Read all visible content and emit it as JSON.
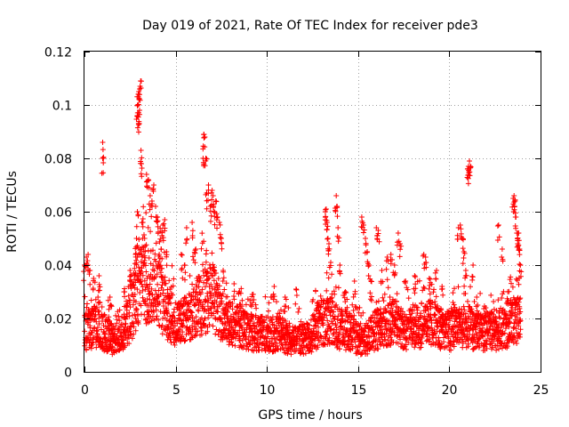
{
  "chart_data": {
    "type": "scatter",
    "title": "Day 019 of 2021, Rate Of TEC Index for receiver pde3",
    "xlabel": "GPS time / hours",
    "ylabel": "ROTI / TECUs",
    "xlim": [
      0,
      25
    ],
    "ylim": [
      0,
      0.12
    ],
    "x_ticks": [
      0,
      5,
      10,
      15,
      20,
      25
    ],
    "x_tick_labels": [
      "0",
      "5",
      "10",
      "15",
      "20",
      "25"
    ],
    "y_ticks": [
      0,
      0.02,
      0.04,
      0.06,
      0.08,
      0.1,
      0.12
    ],
    "y_tick_labels": [
      "0",
      "0.02",
      "0.04",
      "0.06",
      "0.08",
      "0.1",
      "0.12"
    ],
    "grid": true,
    "marker": "plus",
    "color": "#ff0000",
    "x_step": 0.02,
    "baseline": [
      [
        0.0,
        0.016
      ],
      [
        0.5,
        0.018
      ],
      [
        1.0,
        0.016
      ],
      [
        1.5,
        0.013
      ],
      [
        2.0,
        0.015
      ],
      [
        2.5,
        0.022
      ],
      [
        3.0,
        0.034
      ],
      [
        3.5,
        0.034
      ],
      [
        4.0,
        0.032
      ],
      [
        4.5,
        0.024
      ],
      [
        5.0,
        0.019
      ],
      [
        5.5,
        0.02
      ],
      [
        6.0,
        0.024
      ],
      [
        6.5,
        0.028
      ],
      [
        7.0,
        0.03
      ],
      [
        7.5,
        0.023
      ],
      [
        8.0,
        0.019
      ],
      [
        8.5,
        0.018
      ],
      [
        9.0,
        0.016
      ],
      [
        9.5,
        0.015
      ],
      [
        10.0,
        0.015
      ],
      [
        10.5,
        0.015
      ],
      [
        11.0,
        0.014
      ],
      [
        11.5,
        0.012
      ],
      [
        12.0,
        0.013
      ],
      [
        12.5,
        0.015
      ],
      [
        13.0,
        0.02
      ],
      [
        13.5,
        0.02
      ],
      [
        14.0,
        0.017
      ],
      [
        14.5,
        0.016
      ],
      [
        15.0,
        0.013
      ],
      [
        15.5,
        0.013
      ],
      [
        16.0,
        0.017
      ],
      [
        16.5,
        0.018
      ],
      [
        17.0,
        0.02
      ],
      [
        17.5,
        0.016
      ],
      [
        18.0,
        0.018
      ],
      [
        18.5,
        0.018
      ],
      [
        19.0,
        0.02
      ],
      [
        19.5,
        0.017
      ],
      [
        20.0,
        0.016
      ],
      [
        20.5,
        0.017
      ],
      [
        21.0,
        0.018
      ],
      [
        21.5,
        0.016
      ],
      [
        22.0,
        0.016
      ],
      [
        22.5,
        0.016
      ],
      [
        23.0,
        0.017
      ],
      [
        23.5,
        0.02
      ],
      [
        23.9,
        0.02
      ]
    ],
    "extremes": [
      {
        "x": 0.0,
        "y": 0.04
      },
      {
        "x": 0.1,
        "y": 0.043
      },
      {
        "x": 0.2,
        "y": 0.044
      },
      {
        "x": 0.3,
        "y": 0.038
      },
      {
        "x": 0.5,
        "y": 0.035
      },
      {
        "x": 0.8,
        "y": 0.036
      },
      {
        "x": 1.0,
        "y": 0.086
      },
      {
        "x": 1.0,
        "y": 0.08
      },
      {
        "x": 1.4,
        "y": 0.028
      },
      {
        "x": 2.2,
        "y": 0.03
      },
      {
        "x": 2.5,
        "y": 0.038
      },
      {
        "x": 2.8,
        "y": 0.044
      },
      {
        "x": 2.85,
        "y": 0.05
      },
      {
        "x": 2.9,
        "y": 0.06
      },
      {
        "x": 2.9,
        "y": 0.096
      },
      {
        "x": 2.92,
        "y": 0.1
      },
      {
        "x": 2.95,
        "y": 0.104
      },
      {
        "x": 2.98,
        "y": 0.105
      },
      {
        "x": 3.0,
        "y": 0.093
      },
      {
        "x": 3.02,
        "y": 0.098
      },
      {
        "x": 3.05,
        "y": 0.107
      },
      {
        "x": 3.08,
        "y": 0.109
      },
      {
        "x": 3.1,
        "y": 0.083
      },
      {
        "x": 3.12,
        "y": 0.078
      },
      {
        "x": 3.2,
        "y": 0.056
      },
      {
        "x": 3.3,
        "y": 0.05
      },
      {
        "x": 3.4,
        "y": 0.074
      },
      {
        "x": 3.5,
        "y": 0.072
      },
      {
        "x": 3.6,
        "y": 0.066
      },
      {
        "x": 3.7,
        "y": 0.064
      },
      {
        "x": 3.8,
        "y": 0.07
      },
      {
        "x": 3.9,
        "y": 0.062
      },
      {
        "x": 4.0,
        "y": 0.058
      },
      {
        "x": 4.1,
        "y": 0.044
      },
      {
        "x": 4.2,
        "y": 0.046
      },
      {
        "x": 4.3,
        "y": 0.055
      },
      {
        "x": 4.4,
        "y": 0.057
      },
      {
        "x": 4.5,
        "y": 0.045
      },
      {
        "x": 5.3,
        "y": 0.044
      },
      {
        "x": 5.5,
        "y": 0.04
      },
      {
        "x": 5.6,
        "y": 0.054
      },
      {
        "x": 5.9,
        "y": 0.056
      },
      {
        "x": 6.1,
        "y": 0.046
      },
      {
        "x": 6.5,
        "y": 0.08
      },
      {
        "x": 6.55,
        "y": 0.089
      },
      {
        "x": 6.6,
        "y": 0.088
      },
      {
        "x": 6.65,
        "y": 0.08
      },
      {
        "x": 6.7,
        "y": 0.067
      },
      {
        "x": 6.8,
        "y": 0.07
      },
      {
        "x": 6.9,
        "y": 0.062
      },
      {
        "x": 7.0,
        "y": 0.068
      },
      {
        "x": 7.05,
        "y": 0.066
      },
      {
        "x": 7.1,
        "y": 0.06
      },
      {
        "x": 7.2,
        "y": 0.064
      },
      {
        "x": 7.3,
        "y": 0.058
      },
      {
        "x": 7.4,
        "y": 0.056
      },
      {
        "x": 7.5,
        "y": 0.05
      },
      {
        "x": 7.6,
        "y": 0.038
      },
      {
        "x": 8.2,
        "y": 0.033
      },
      {
        "x": 8.5,
        "y": 0.03
      },
      {
        "x": 9.2,
        "y": 0.029
      },
      {
        "x": 10.4,
        "y": 0.032
      },
      {
        "x": 11.0,
        "y": 0.028
      },
      {
        "x": 11.6,
        "y": 0.031
      },
      {
        "x": 12.8,
        "y": 0.026
      },
      {
        "x": 13.2,
        "y": 0.06
      },
      {
        "x": 13.25,
        "y": 0.061
      },
      {
        "x": 13.3,
        "y": 0.056
      },
      {
        "x": 13.35,
        "y": 0.05
      },
      {
        "x": 13.4,
        "y": 0.048
      },
      {
        "x": 13.5,
        "y": 0.041
      },
      {
        "x": 13.8,
        "y": 0.066
      },
      {
        "x": 13.85,
        "y": 0.062
      },
      {
        "x": 13.9,
        "y": 0.054
      },
      {
        "x": 14.0,
        "y": 0.04
      },
      {
        "x": 14.3,
        "y": 0.03
      },
      {
        "x": 14.8,
        "y": 0.034
      },
      {
        "x": 15.2,
        "y": 0.058
      },
      {
        "x": 15.3,
        "y": 0.055
      },
      {
        "x": 15.4,
        "y": 0.05
      },
      {
        "x": 15.5,
        "y": 0.045
      },
      {
        "x": 15.6,
        "y": 0.04
      },
      {
        "x": 15.7,
        "y": 0.034
      },
      {
        "x": 16.0,
        "y": 0.054
      },
      {
        "x": 16.1,
        "y": 0.053
      },
      {
        "x": 16.3,
        "y": 0.038
      },
      {
        "x": 16.6,
        "y": 0.043
      },
      {
        "x": 16.8,
        "y": 0.044
      },
      {
        "x": 17.0,
        "y": 0.04
      },
      {
        "x": 17.2,
        "y": 0.052
      },
      {
        "x": 17.3,
        "y": 0.048
      },
      {
        "x": 17.6,
        "y": 0.034
      },
      {
        "x": 18.1,
        "y": 0.036
      },
      {
        "x": 18.6,
        "y": 0.044
      },
      {
        "x": 18.7,
        "y": 0.043
      },
      {
        "x": 18.9,
        "y": 0.035
      },
      {
        "x": 19.3,
        "y": 0.038
      },
      {
        "x": 19.6,
        "y": 0.032
      },
      {
        "x": 20.2,
        "y": 0.026
      },
      {
        "x": 20.5,
        "y": 0.054
      },
      {
        "x": 20.6,
        "y": 0.055
      },
      {
        "x": 20.7,
        "y": 0.05
      },
      {
        "x": 20.8,
        "y": 0.045
      },
      {
        "x": 20.9,
        "y": 0.038
      },
      {
        "x": 21.0,
        "y": 0.076
      },
      {
        "x": 21.05,
        "y": 0.077
      },
      {
        "x": 21.1,
        "y": 0.079
      },
      {
        "x": 21.15,
        "y": 0.077
      },
      {
        "x": 21.3,
        "y": 0.04
      },
      {
        "x": 21.5,
        "y": 0.028
      },
      {
        "x": 22.0,
        "y": 0.024
      },
      {
        "x": 22.7,
        "y": 0.055
      },
      {
        "x": 22.9,
        "y": 0.046
      },
      {
        "x": 23.2,
        "y": 0.03
      },
      {
        "x": 23.5,
        "y": 0.065
      },
      {
        "x": 23.55,
        "y": 0.066
      },
      {
        "x": 23.6,
        "y": 0.064
      },
      {
        "x": 23.65,
        "y": 0.058
      },
      {
        "x": 23.7,
        "y": 0.052
      },
      {
        "x": 23.75,
        "y": 0.048
      },
      {
        "x": 23.8,
        "y": 0.052
      },
      {
        "x": 23.85,
        "y": 0.046
      },
      {
        "x": 23.9,
        "y": 0.04
      }
    ]
  }
}
